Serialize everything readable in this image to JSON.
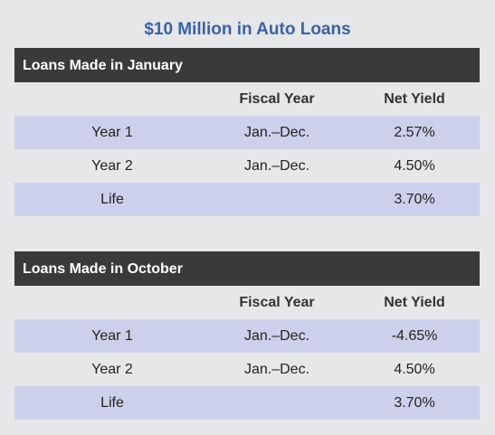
{
  "chart_data": {
    "type": "table",
    "title": "$10 Million in Auto Loans",
    "tables": [
      {
        "heading": "Loans Made in January",
        "columns": [
          "",
          "Fiscal Year",
          "Net Yield"
        ],
        "rows": [
          {
            "period": "Year 1",
            "fiscal_year": "Jan.–Dec.",
            "net_yield": "2.57%"
          },
          {
            "period": "Year 2",
            "fiscal_year": "Jan.–Dec.",
            "net_yield": "4.50%"
          },
          {
            "period": "Life",
            "fiscal_year": "",
            "net_yield": "3.70%"
          }
        ]
      },
      {
        "heading": "Loans Made in October",
        "columns": [
          "",
          "Fiscal Year",
          "Net Yield"
        ],
        "rows": [
          {
            "period": "Year 1",
            "fiscal_year": "Jan.–Dec.",
            "net_yield": "-4.65%"
          },
          {
            "period": "Year 2",
            "fiscal_year": "Jan.–Dec.",
            "net_yield": "4.50%"
          },
          {
            "period": "Life",
            "fiscal_year": "",
            "net_yield": "3.70%"
          }
        ]
      }
    ]
  },
  "colors": {
    "title": "#3a62a7",
    "header_bar": "#3b3a3b",
    "band": "#cdd0ea",
    "background": "#e6e7e8"
  }
}
